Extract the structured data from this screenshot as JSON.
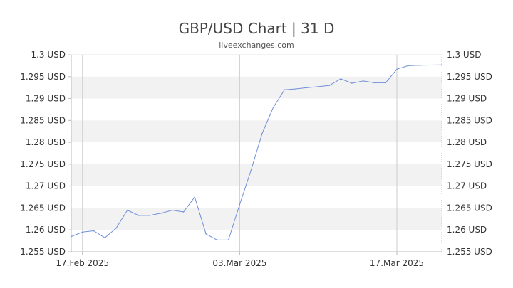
{
  "chart_data": {
    "type": "line",
    "title": "GBP/USD Chart | 31 D",
    "subtitle": "liveexchanges.com",
    "ylim": [
      1.255,
      1.3
    ],
    "y_ticks": [
      "1.3 USD",
      "1.295 USD",
      "1.29 USD",
      "1.285 USD",
      "1.28 USD",
      "1.275 USD",
      "1.27 USD",
      "1.265 USD",
      "1.26 USD",
      "1.255 USD"
    ],
    "x_ticks": [
      "17.Feb 2025",
      "03.Mar 2025",
      "17.Mar 2025"
    ],
    "grid": "horizontal bands",
    "colors": {
      "line": "#6f8fd8",
      "band": "#f2f2f2",
      "axis": "#bbbbbb"
    },
    "series": [
      {
        "x": [
          "2025-02-16",
          "2025-02-17",
          "2025-02-18",
          "2025-02-19",
          "2025-02-20",
          "2025-02-21",
          "2025-02-22",
          "2025-02-23",
          "2025-02-24",
          "2025-02-25",
          "2025-02-26",
          "2025-02-27",
          "2025-02-28",
          "2025-03-01",
          "2025-03-02",
          "2025-03-03",
          "2025-03-04",
          "2025-03-05",
          "2025-03-06",
          "2025-03-07",
          "2025-03-08",
          "2025-03-09",
          "2025-03-10",
          "2025-03-11",
          "2025-03-12",
          "2025-03-13",
          "2025-03-14",
          "2025-03-15",
          "2025-03-16",
          "2025-03-17",
          "2025-03-18",
          "2025-03-19",
          "2025-03-21"
        ],
        "values": [
          1.2585,
          1.2595,
          1.2598,
          1.2582,
          1.2604,
          1.2645,
          1.2633,
          1.2633,
          1.2638,
          1.2645,
          1.2641,
          1.2675,
          1.2591,
          1.2577,
          1.2577,
          1.2658,
          1.2735,
          1.282,
          1.288,
          1.292,
          1.2922,
          1.2925,
          1.2927,
          1.293,
          1.2945,
          1.2935,
          1.294,
          1.2936,
          1.2936,
          1.2967,
          1.2975,
          1.2976,
          1.2977
        ]
      }
    ]
  }
}
